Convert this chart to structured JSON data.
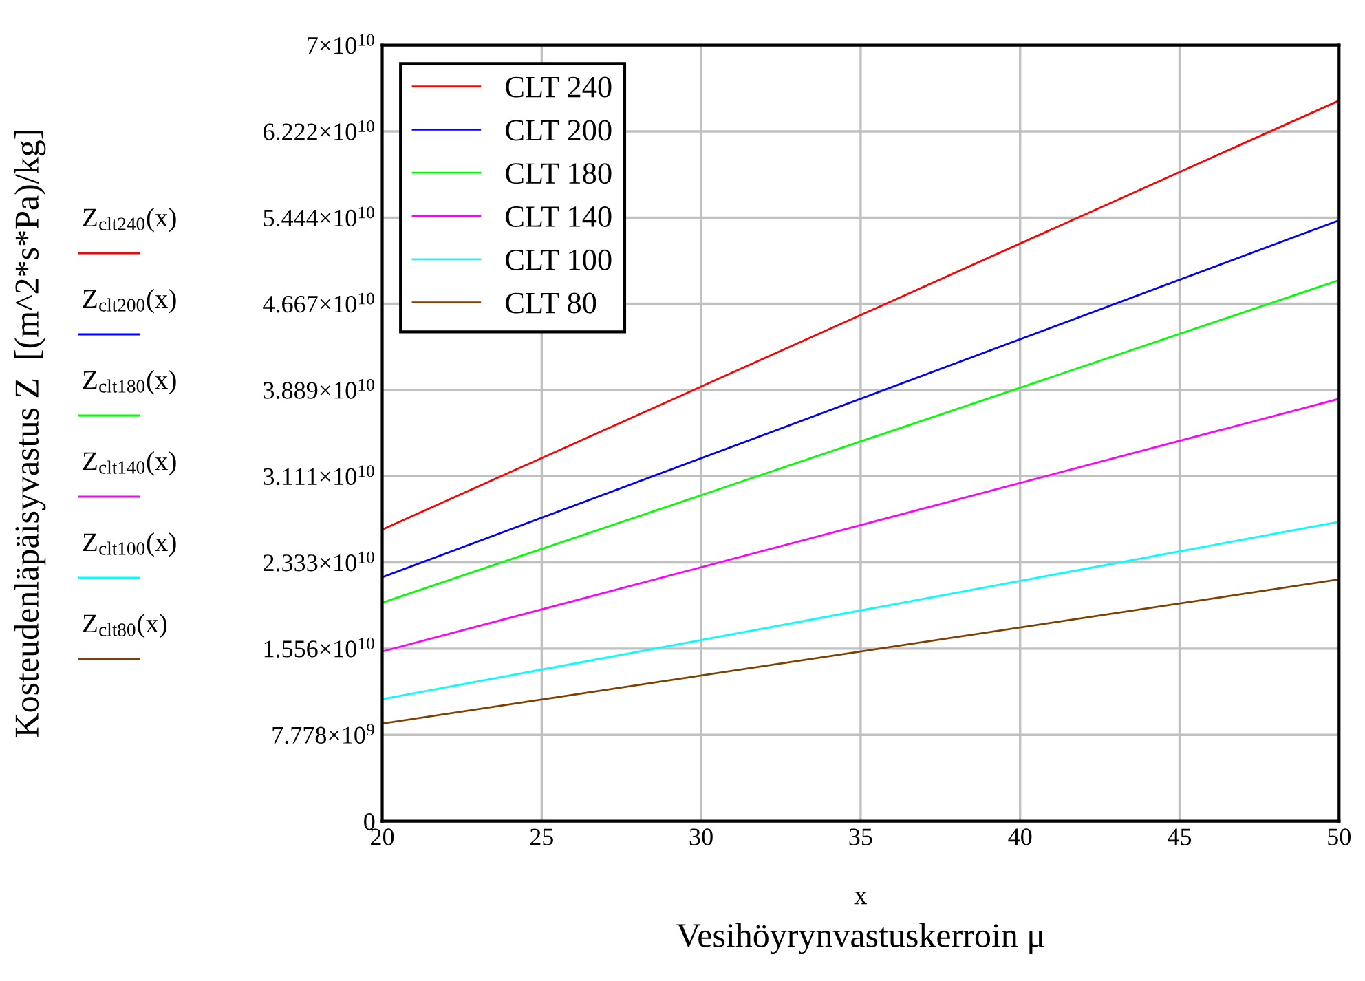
{
  "chart_data": {
    "type": "line",
    "xlabel": "Vesihöyrynvastuskerroin μ",
    "annotations": [
      "x",
      "Z$_{clt240}$(x)",
      "Z$_{clt200}$(x)",
      "Z$_{clt180}$(x)",
      "Z$_{clt140}$(x)",
      "Z$_{clt100}$(x)",
      "Z$_{clt80}$(x)",
      "Kosteudenläpäisyvastus Z  [(m^2*s*Pa)/kg]"
    ],
    "series": [
      {
        "name": "CLT 240",
        "color": "#ff0000",
        "values": [
          26300000000.0,
          65000000000.0
        ]
      },
      {
        "name": "CLT 200",
        "color": "#0000ff",
        "values": [
          22000000000.0,
          54200000000.0
        ]
      },
      {
        "name": "CLT 180",
        "color": "#00ff00",
        "values": [
          19700000000.0,
          48800000000.0
        ]
      },
      {
        "name": "CLT 140",
        "color": "#ff00ff",
        "values": [
          15300000000.0,
          38100000000.0
        ]
      },
      {
        "name": "CLT 100",
        "color": "#00ffff",
        "values": [
          11000000000.0,
          27000000000.0
        ]
      },
      {
        "name": "CLT 80",
        "color": "#804000",
        "values": [
          8800000000.0,
          21800000000.0
        ]
      }
    ],
    "x": [
      20,
      50
    ],
    "xlim": [
      20,
      50
    ],
    "xticks": [
      20,
      25,
      30,
      35,
      40,
      45,
      50
    ],
    "ylim": [
      0,
      70000000000.0
    ],
    "yticks": [
      0,
      {
        "value": 7778000000.0,
        "label": "7.778×10$^{9}$"
      },
      {
        "value": 15560000000.0,
        "label": "1.556×10$^{10}$"
      },
      {
        "value": 23330000000.0,
        "label": "2.333×10$^{10}$"
      },
      {
        "value": 31110000000.0,
        "label": "3.111×10$^{10}$"
      },
      {
        "value": 38890000000.0,
        "label": "3.889×10$^{10}$"
      },
      {
        "value": 46670000000.0,
        "label": "4.667×10$^{10}$"
      },
      {
        "value": 54440000000.0,
        "label": "5.444×10$^{10}$"
      },
      {
        "value": 62220000000.0,
        "label": "6.222×10$^{10}$"
      },
      {
        "value": 70000000000.0,
        "label": "7×10$^{10}$"
      }
    ],
    "grid": true,
    "legend": "top left",
    "line_style": "solid",
    "marker": "none"
  }
}
